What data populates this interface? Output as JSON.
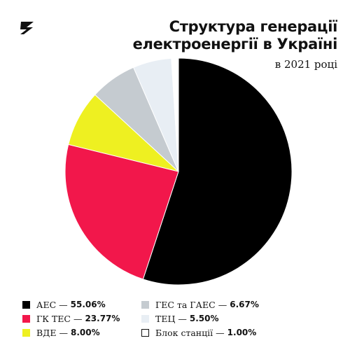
{
  "logo": {
    "icon": "z-logo-icon",
    "color": "#111111"
  },
  "chart_data": {
    "type": "pie",
    "title": "Структура генерації електроенергії в Україні",
    "title_lines": [
      "Структура генерації",
      "електроенергії в Україні"
    ],
    "subtitle": "в 2021 році",
    "unit": "%",
    "start": "12 o'clock",
    "direction": "clockwise",
    "legend_position": "bottom",
    "separator": "—",
    "slices": [
      {
        "label": "АЕС",
        "value": 55.06,
        "value_text": "55.06%",
        "color": "#000000"
      },
      {
        "label": "ГК ТЕС",
        "value": 23.77,
        "value_text": "23.77%",
        "color": "#f2174b"
      },
      {
        "label": "ВДЕ",
        "value": 8.0,
        "value_text": "8.00%",
        "color": "#eef021"
      },
      {
        "label": "ГЕС та ГАЕС",
        "value": 6.67,
        "value_text": "6.67%",
        "color": "#c5cbd0"
      },
      {
        "label": "ТЕЦ",
        "value": 5.5,
        "value_text": "5.50%",
        "color": "#e8eef4"
      },
      {
        "label": "Блок станції",
        "value": 1.0,
        "value_text": "1.00%",
        "color": "#ffffff"
      }
    ]
  }
}
